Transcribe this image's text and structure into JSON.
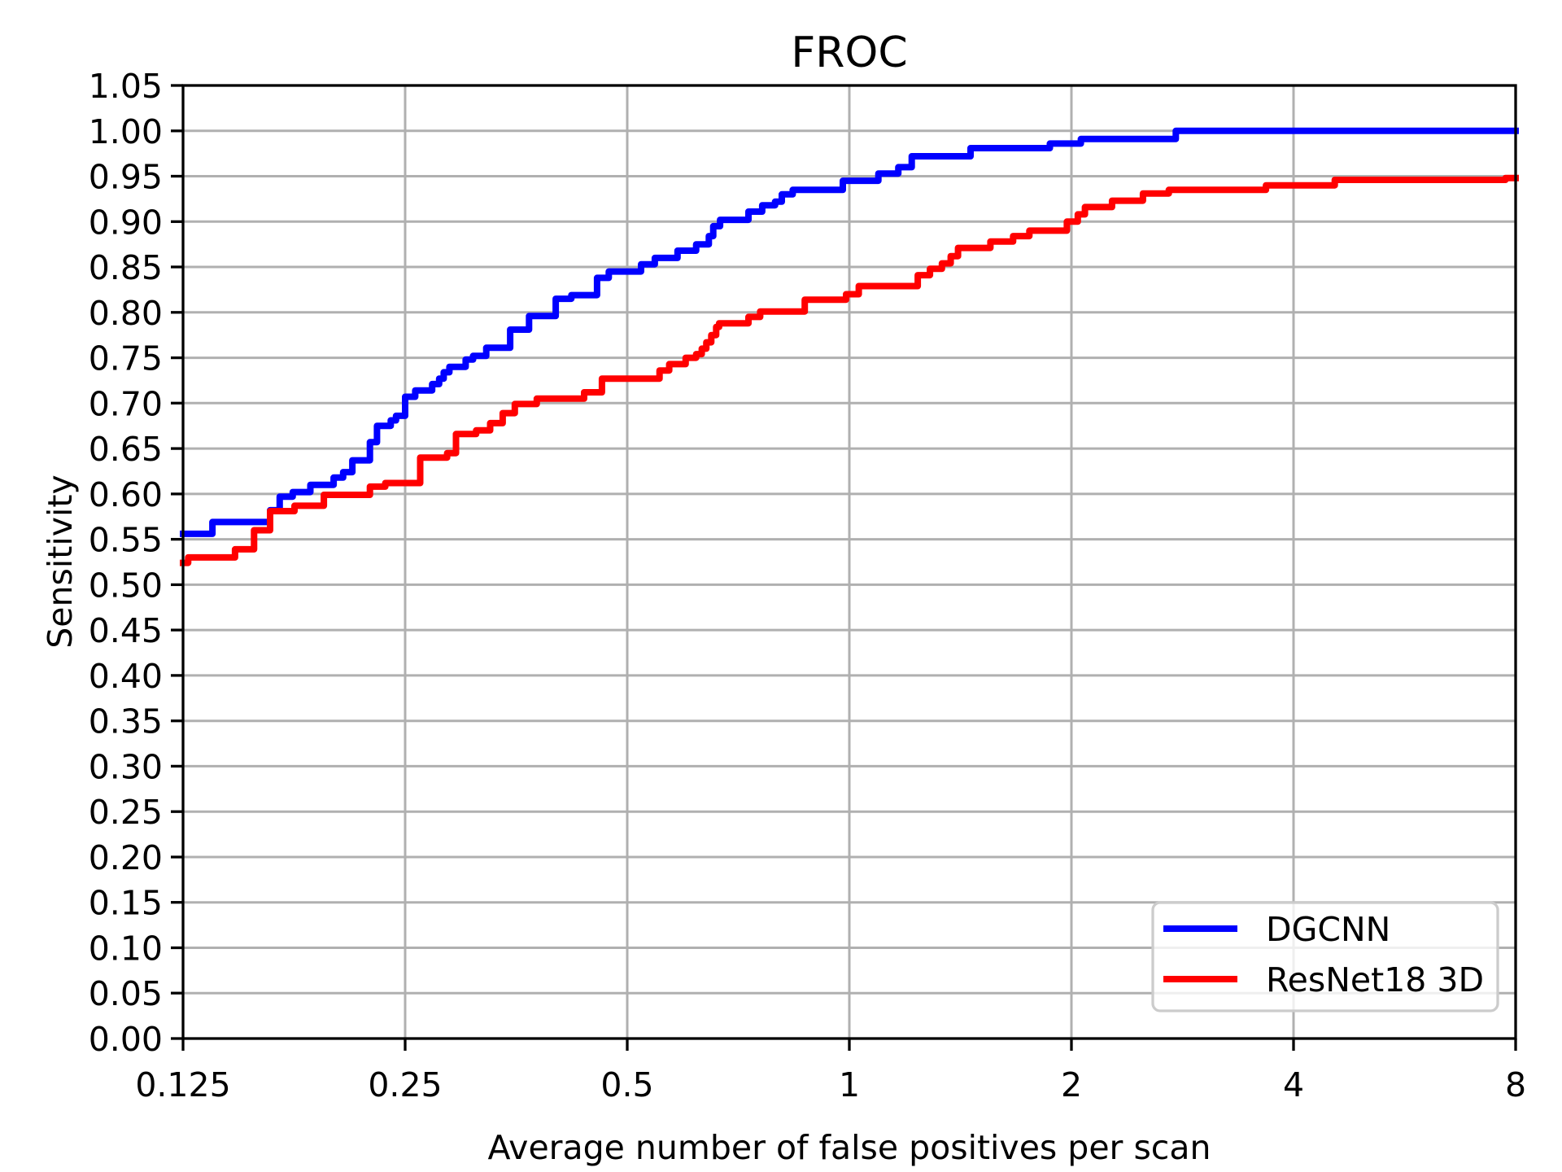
{
  "chart_data": {
    "type": "line",
    "title": "FROC",
    "xlabel": "Average number of false positives per scan",
    "ylabel": "Sensitivity",
    "x_scale": "log2",
    "xlim": [
      0.125,
      8
    ],
    "ylim": [
      0.0,
      1.05
    ],
    "grid": true,
    "grid_color": "#b0b0b0",
    "x_ticks": [
      0.125,
      0.25,
      0.5,
      1,
      2,
      4,
      8
    ],
    "x_tick_labels": [
      "0.125",
      "0.25",
      "0.5",
      "1",
      "2",
      "4",
      "8"
    ],
    "y_ticks": [
      0.0,
      0.05,
      0.1,
      0.15,
      0.2,
      0.25,
      0.3,
      0.35,
      0.4,
      0.45,
      0.5,
      0.55,
      0.6,
      0.65,
      0.7,
      0.75,
      0.8,
      0.85,
      0.9,
      0.95,
      1.0,
      1.05
    ],
    "y_tick_labels": [
      "0.00",
      "0.05",
      "0.10",
      "0.15",
      "0.20",
      "0.25",
      "0.30",
      "0.35",
      "0.40",
      "0.45",
      "0.50",
      "0.55",
      "0.60",
      "0.65",
      "0.70",
      "0.75",
      "0.80",
      "0.85",
      "0.90",
      "0.95",
      "1.00",
      "1.05"
    ],
    "legend": {
      "position": "lower right",
      "border_color": "#cccccc",
      "background": "rgba(255,255,255,0.8)"
    },
    "step_mode": "post",
    "series": [
      {
        "name": "DGCNN",
        "color": "#0000ff",
        "points": [
          [
            0.125,
            0.556
          ],
          [
            0.137,
            0.569
          ],
          [
            0.164,
            0.582
          ],
          [
            0.169,
            0.597
          ],
          [
            0.176,
            0.602
          ],
          [
            0.186,
            0.61
          ],
          [
            0.2,
            0.618
          ],
          [
            0.206,
            0.624
          ],
          [
            0.212,
            0.637
          ],
          [
            0.224,
            0.657
          ],
          [
            0.229,
            0.675
          ],
          [
            0.239,
            0.681
          ],
          [
            0.243,
            0.686
          ],
          [
            0.25,
            0.707
          ],
          [
            0.258,
            0.714
          ],
          [
            0.272,
            0.721
          ],
          [
            0.278,
            0.727
          ],
          [
            0.282,
            0.734
          ],
          [
            0.287,
            0.74
          ],
          [
            0.302,
            0.748
          ],
          [
            0.309,
            0.752
          ],
          [
            0.322,
            0.761
          ],
          [
            0.347,
            0.781
          ],
          [
            0.368,
            0.796
          ],
          [
            0.4,
            0.815
          ],
          [
            0.42,
            0.819
          ],
          [
            0.455,
            0.838
          ],
          [
            0.472,
            0.845
          ],
          [
            0.522,
            0.853
          ],
          [
            0.545,
            0.86
          ],
          [
            0.585,
            0.868
          ],
          [
            0.62,
            0.875
          ],
          [
            0.645,
            0.884
          ],
          [
            0.654,
            0.895
          ],
          [
            0.668,
            0.902
          ],
          [
            0.73,
            0.911
          ],
          [
            0.762,
            0.918
          ],
          [
            0.793,
            0.922
          ],
          [
            0.81,
            0.93
          ],
          [
            0.838,
            0.935
          ],
          [
            0.98,
            0.945
          ],
          [
            1.095,
            0.953
          ],
          [
            1.165,
            0.96
          ],
          [
            1.215,
            0.972
          ],
          [
            1.46,
            0.981
          ],
          [
            1.87,
            0.986
          ],
          [
            2.06,
            0.991
          ],
          [
            2.77,
            1.0
          ],
          [
            8.0,
            1.0
          ]
        ]
      },
      {
        "name": "ResNet18 3D",
        "color": "#ff0000",
        "points": [
          [
            0.125,
            0.524
          ],
          [
            0.127,
            0.53
          ],
          [
            0.147,
            0.539
          ],
          [
            0.156,
            0.56
          ],
          [
            0.164,
            0.581
          ],
          [
            0.177,
            0.587
          ],
          [
            0.194,
            0.599
          ],
          [
            0.224,
            0.608
          ],
          [
            0.235,
            0.612
          ],
          [
            0.262,
            0.64
          ],
          [
            0.285,
            0.645
          ],
          [
            0.293,
            0.666
          ],
          [
            0.312,
            0.67
          ],
          [
            0.326,
            0.678
          ],
          [
            0.339,
            0.689
          ],
          [
            0.352,
            0.699
          ],
          [
            0.377,
            0.705
          ],
          [
            0.437,
            0.712
          ],
          [
            0.462,
            0.727
          ],
          [
            0.553,
            0.736
          ],
          [
            0.57,
            0.743
          ],
          [
            0.6,
            0.75
          ],
          [
            0.62,
            0.754
          ],
          [
            0.631,
            0.76
          ],
          [
            0.64,
            0.767
          ],
          [
            0.65,
            0.775
          ],
          [
            0.66,
            0.784
          ],
          [
            0.666,
            0.788
          ],
          [
            0.73,
            0.795
          ],
          [
            0.757,
            0.801
          ],
          [
            0.87,
            0.814
          ],
          [
            0.99,
            0.82
          ],
          [
            1.03,
            0.829
          ],
          [
            1.238,
            0.841
          ],
          [
            1.286,
            0.848
          ],
          [
            1.335,
            0.854
          ],
          [
            1.372,
            0.862
          ],
          [
            1.404,
            0.871
          ],
          [
            1.553,
            0.878
          ],
          [
            1.667,
            0.884
          ],
          [
            1.754,
            0.89
          ],
          [
            1.972,
            0.9
          ],
          [
            2.04,
            0.908
          ],
          [
            2.086,
            0.916
          ],
          [
            2.27,
            0.923
          ],
          [
            2.5,
            0.931
          ],
          [
            2.71,
            0.935
          ],
          [
            3.67,
            0.94
          ],
          [
            4.55,
            0.946
          ],
          [
            7.75,
            0.948
          ],
          [
            8.0,
            0.948
          ]
        ]
      }
    ]
  }
}
